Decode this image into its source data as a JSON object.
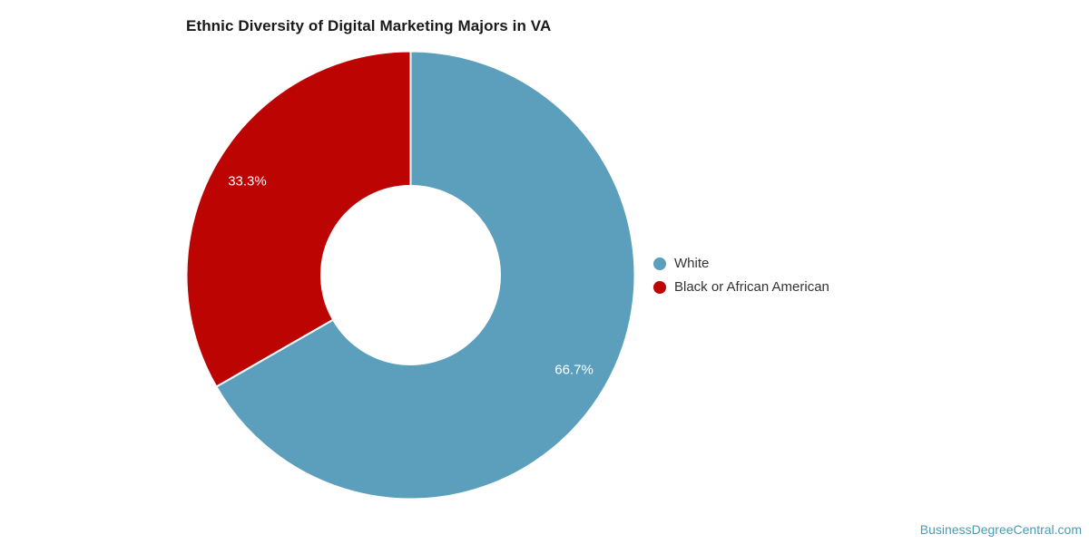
{
  "chart_data": {
    "type": "pie",
    "subtype": "donut",
    "title": "Ethnic Diversity of Digital Marketing Majors in VA",
    "series": [
      {
        "name": "White",
        "value": 66.7,
        "label": "66.7%",
        "color": "#5B9FBD",
        "label_color": "#FFFFFF"
      },
      {
        "name": "Black or African American",
        "value": 33.3,
        "label": "33.3%",
        "color": "#BC0403",
        "label_color": "#FFFFFF"
      }
    ],
    "start_angle_deg": 0,
    "direction": "clockwise",
    "inner_radius_ratio": 0.4,
    "legend_position": "right",
    "grid": false
  },
  "watermark": "BusinessDegreeCentral.com",
  "colors": {
    "background": "#FFFFFF",
    "title_text": "#1A1A1A",
    "legend_text": "#333333",
    "watermark_text": "#4D9AB5",
    "slice_border": "#FFFFFF"
  }
}
